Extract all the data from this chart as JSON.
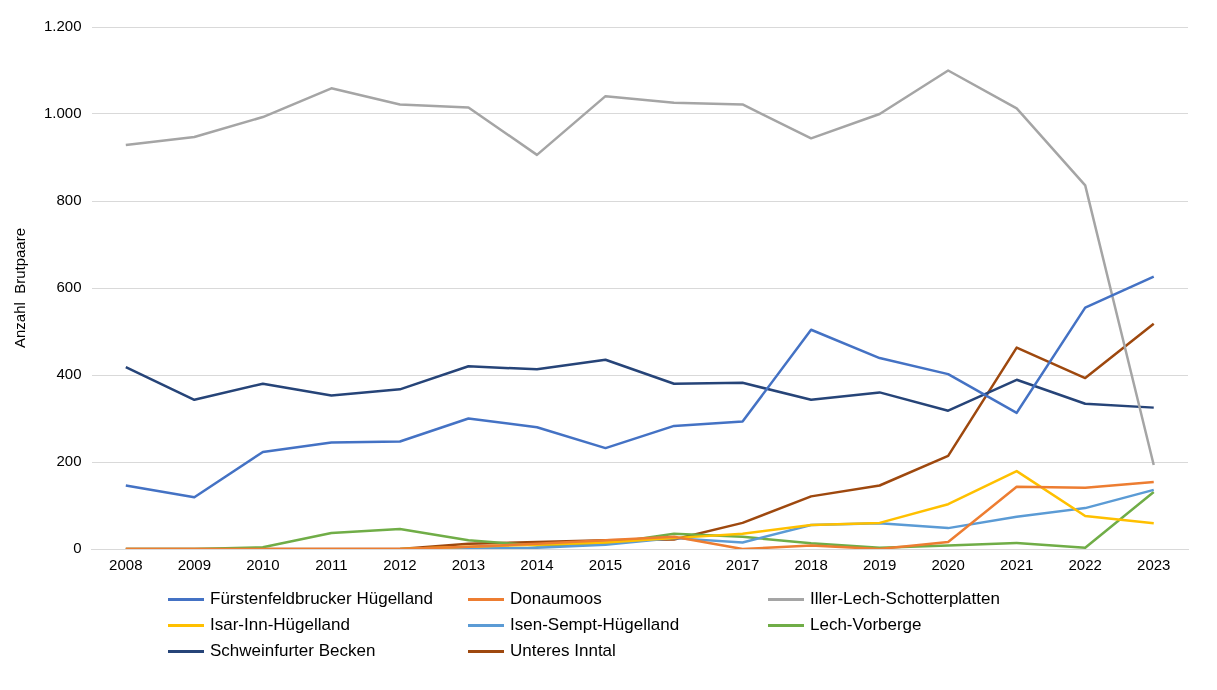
{
  "chart_data": {
    "type": "line",
    "ylabel": "Anzahl  Brutpaare",
    "categories": [
      "2008",
      "2009",
      "2010",
      "2011",
      "2012",
      "2013",
      "2014",
      "2015",
      "2016",
      "2017",
      "2018",
      "2019",
      "2020",
      "2021",
      "2022",
      "2023"
    ],
    "ylim": [
      0,
      1200
    ],
    "yticks": [
      0,
      200,
      400,
      600,
      800,
      {
        "value": 1000,
        "label": "1.000"
      },
      {
        "value": 1200,
        "label": "1.200"
      }
    ],
    "grid": "y",
    "legend": "bottom",
    "marker": "none",
    "line_style": "solid",
    "series": [
      {
        "name": "Fürstenfeldbrucker Hügelland",
        "color": "#4472c4",
        "values": [
          146,
          119,
          223,
          245,
          247,
          300,
          280,
          232,
          283,
          293,
          504,
          439,
          402,
          313,
          555,
          626
        ]
      },
      {
        "name": "Donaumoos",
        "color": "#ed7d31",
        "values": [
          0,
          0,
          0,
          0,
          0,
          5,
          12,
          20,
          28,
          0,
          8,
          0,
          16,
          143,
          141,
          154
        ]
      },
      {
        "name": "Iller-Lech-Schotterplatten",
        "color": "#a5a5a5",
        "values": [
          929,
          947,
          993,
          1059,
          1022,
          1015,
          906,
          1041,
          1026,
          1022,
          944,
          1000,
          1100,
          1013,
          836,
          193
        ]
      },
      {
        "name": "Isar-Inn-Hügelland",
        "color": "#ffc000",
        "values": [
          null,
          null,
          null,
          null,
          0,
          5,
          10,
          15,
          25,
          35,
          55,
          60,
          103,
          179,
          76,
          59
        ]
      },
      {
        "name": "Isen-Sempt-Hügelland",
        "color": "#5b9bd5",
        "values": [
          null,
          null,
          null,
          null,
          0,
          2,
          3,
          10,
          25,
          15,
          55,
          59,
          48,
          74,
          94,
          136
        ]
      },
      {
        "name": "Lech-Vorberge",
        "color": "#70ad47",
        "values": [
          0,
          0,
          4,
          37,
          46,
          20,
          8,
          12,
          35,
          28,
          13,
          3,
          8,
          14,
          3,
          131
        ]
      },
      {
        "name": "Schweinfurter Becken",
        "color": "#264478",
        "values": [
          418,
          343,
          380,
          353,
          367,
          420,
          413,
          435,
          380,
          382,
          343,
          360,
          318,
          389,
          334,
          325
        ]
      },
      {
        "name": "Unteres Inntal",
        "color": "#9e480e",
        "values": [
          0,
          0,
          0,
          0,
          0,
          12,
          16,
          20,
          22,
          60,
          121,
          146,
          214,
          463,
          393,
          518
        ]
      }
    ]
  }
}
